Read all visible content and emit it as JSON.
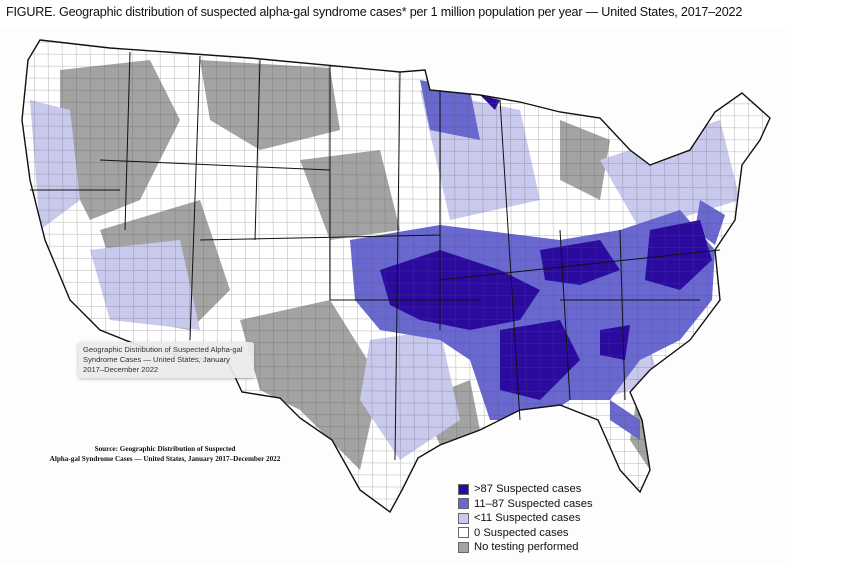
{
  "title": "FIGURE. Geographic distribution of suspected alpha-gal syndrome cases* per 1 million population per year — United States, 2017–2022",
  "tooltip": "Geographic Distribution of Suspected Alpha-gal Syndrome Cases — United States, January 2017–December 2022",
  "source": {
    "line1": "Source: Geographic Distribution of Suspected",
    "line2": "Alpha-gal Syndrome Cases — United States, January 2017–December 2022"
  },
  "legend": [
    {
      "label": ">87 Suspected cases",
      "color": "#2b0a9e"
    },
    {
      "label": "11–87 Suspected cases",
      "color": "#6868cf"
    },
    {
      "label": "<11 Suspected cases",
      "color": "#c9c9ee"
    },
    {
      "label": "0 Suspected cases",
      "color": "#ffffff"
    },
    {
      "label": "No testing performed",
      "color": "#a3a3a3"
    }
  ]
}
